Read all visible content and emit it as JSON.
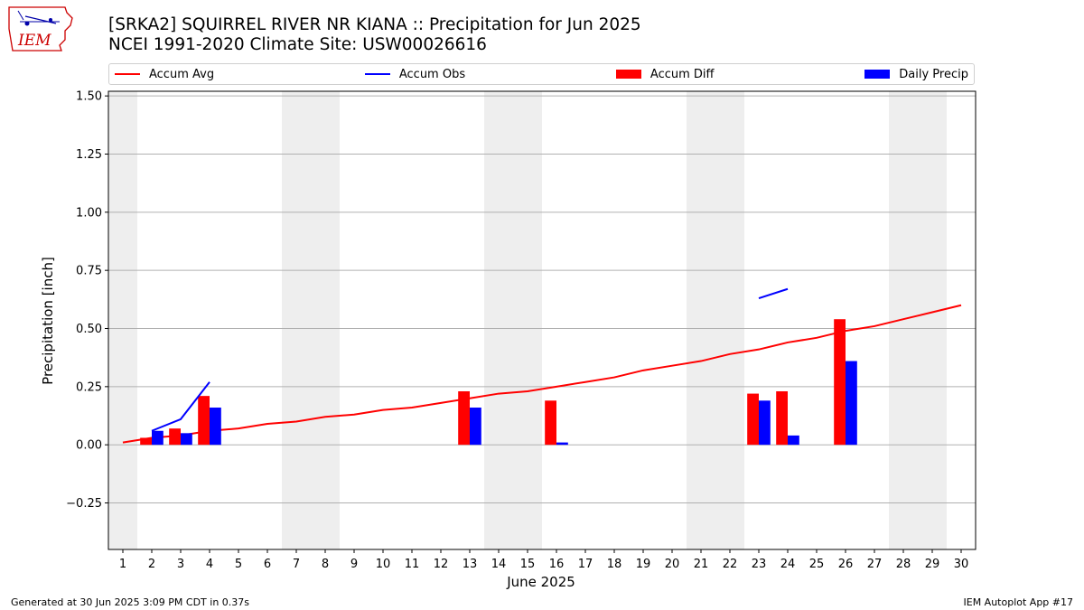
{
  "header": {
    "title_line1": "[SRKA2] SQUIRREL RIVER NR KIANA :: Precipitation for Jun 2025",
    "title_line2": "NCEI 1991-2020 Climate Site: USW00026616"
  },
  "logo": {
    "text": "IEM",
    "icon": "iowa-state-map-icon",
    "color": "#cc0000"
  },
  "footer": {
    "left": "Generated at 30 Jun 2025 3:09 PM CDT in 0.37s",
    "right": "IEM Autoplot App #17"
  },
  "colors": {
    "avg": "#ff0000",
    "obs": "#0000ff",
    "diff": "#ff0000",
    "daily": "#0000ff",
    "weekend": "#eeeeee",
    "grid": "#b0b0b0"
  },
  "legend": {
    "accum_avg": "Accum Avg",
    "accum_obs": "Accum Obs",
    "accum_diff": "Accum Diff",
    "daily_precip": "Daily Precip"
  },
  "chart_data": {
    "type": "bar",
    "xlabel": "June 2025",
    "ylabel": "Precipitation [inch]",
    "xlim": [
      0.5,
      30.5
    ],
    "ylim": [
      -0.45,
      1.52
    ],
    "yticks": [
      -0.25,
      0.0,
      0.25,
      0.5,
      0.75,
      1.0,
      1.25,
      1.5
    ],
    "ytick_labels": [
      "−0.25",
      "0.00",
      "0.25",
      "0.50",
      "0.75",
      "1.00",
      "1.25",
      "1.50"
    ],
    "x": [
      1,
      2,
      3,
      4,
      5,
      6,
      7,
      8,
      9,
      10,
      11,
      12,
      13,
      14,
      15,
      16,
      17,
      18,
      19,
      20,
      21,
      22,
      23,
      24,
      25,
      26,
      27,
      28,
      29,
      30
    ],
    "weekend_shading": [
      [
        0.5,
        1.5
      ],
      [
        6.5,
        8.5
      ],
      [
        13.5,
        15.5
      ],
      [
        20.5,
        22.5
      ],
      [
        27.5,
        29.5
      ]
    ],
    "grid": "y",
    "legend_position": "top",
    "series": [
      {
        "name": "Accum Avg",
        "kind": "line",
        "x": [
          1,
          2,
          3,
          4,
          5,
          6,
          7,
          8,
          9,
          10,
          11,
          12,
          13,
          14,
          15,
          16,
          17,
          18,
          19,
          20,
          21,
          22,
          23,
          24,
          25,
          26,
          27,
          28,
          29,
          30
        ],
        "values": [
          0.01,
          0.03,
          0.04,
          0.06,
          0.07,
          0.09,
          0.1,
          0.12,
          0.13,
          0.15,
          0.16,
          0.18,
          0.2,
          0.22,
          0.23,
          0.25,
          0.27,
          0.29,
          0.32,
          0.34,
          0.36,
          0.39,
          0.41,
          0.44,
          0.46,
          0.49,
          0.51,
          0.54,
          0.57,
          0.6
        ]
      },
      {
        "name": "Accum Obs",
        "kind": "line",
        "segments": [
          {
            "x": [
              2,
              3,
              4
            ],
            "values": [
              0.06,
              0.11,
              0.27
            ]
          },
          {
            "x": [
              23,
              24
            ],
            "values": [
              0.63,
              0.67
            ]
          }
        ]
      },
      {
        "name": "Accum Diff",
        "kind": "bar",
        "x": [
          2,
          3,
          4,
          13,
          16,
          23,
          24,
          26
        ],
        "values": [
          0.03,
          0.07,
          0.21,
          0.23,
          0.19,
          0.22,
          0.23,
          0.54
        ]
      },
      {
        "name": "Daily Precip",
        "kind": "bar",
        "x": [
          2,
          3,
          4,
          13,
          16,
          23,
          24,
          26
        ],
        "values": [
          0.06,
          0.05,
          0.16,
          0.16,
          0.01,
          0.19,
          0.04,
          0.36
        ]
      }
    ]
  }
}
